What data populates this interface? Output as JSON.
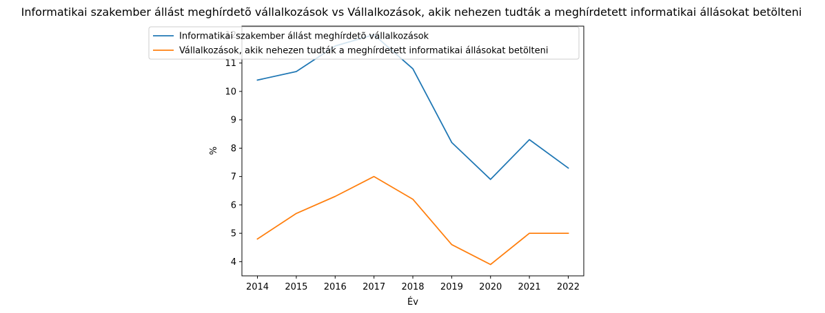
{
  "chart_data": {
    "type": "line",
    "title": "Informatikai szakember állást meghírdetõ vállalkozások vs Vállalkozások, akik nehezen tudták a meghírdetett informatikai állásokat betölteni",
    "xlabel": "Év",
    "ylabel": "%",
    "x": [
      2014,
      2015,
      2016,
      2017,
      2018,
      2019,
      2020,
      2021,
      2022
    ],
    "ylim": [
      3.5,
      12.3
    ],
    "yticks": [
      4,
      5,
      6,
      7,
      8,
      9,
      10,
      11,
      12
    ],
    "grid": false,
    "legend_position": "upper center",
    "series": [
      {
        "name": "Informatikai szakember állást meghírdetõ vállalkozások",
        "color": "#1f77b4",
        "values": [
          10.4,
          10.7,
          11.6,
          12.0,
          10.8,
          8.2,
          6.9,
          8.3,
          7.3
        ]
      },
      {
        "name": "Vállalkozások, akik nehezen tudták a meghírdetett informatikai állásokat betölteni",
        "color": "#ff7f0e",
        "values": [
          4.8,
          5.7,
          6.3,
          7.0,
          6.2,
          4.6,
          3.9,
          5.0,
          5.0
        ]
      }
    ]
  }
}
